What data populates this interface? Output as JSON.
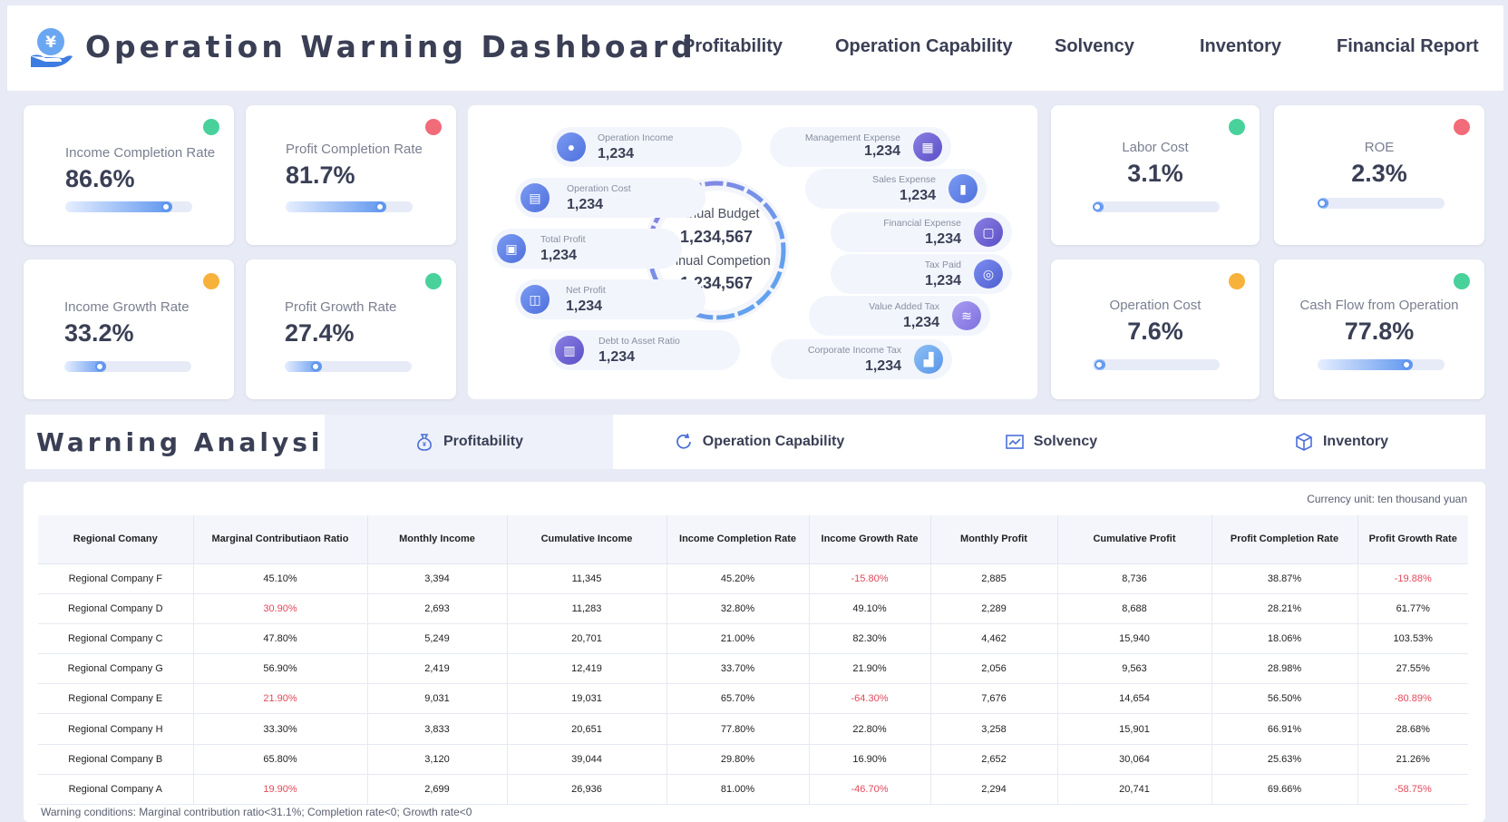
{
  "header": {
    "title": "Operation Warning Dashboard",
    "nav": [
      "Profitability",
      "Operation Capability",
      "Solvency",
      "Inventory",
      "Financial Report"
    ]
  },
  "colors": {
    "green": "#49d19b",
    "red": "#f26b78",
    "orange": "#f7b23b",
    "accent": "#5e95ee"
  },
  "kpis_left": [
    {
      "label": "Income Completion Rate",
      "value": "86.6%",
      "progress": 0.84,
      "status": "green"
    },
    {
      "label": "Profit Completion Rate",
      "value": "81.7%",
      "progress": 0.79,
      "status": "red"
    },
    {
      "label": "Income Growth Rate",
      "value": "33.2%",
      "progress": 0.33,
      "status": "orange"
    },
    {
      "label": "Profit Growth Rate",
      "value": "27.4%",
      "progress": 0.29,
      "status": "green"
    }
  ],
  "kpis_right": [
    {
      "label": "Labor Cost",
      "value": "3.1%",
      "progress": 0.05,
      "status": "green"
    },
    {
      "label": "ROE",
      "value": "2.3%",
      "progress": 0.05,
      "status": "red"
    },
    {
      "label": "Operation Cost",
      "value": "7.6%",
      "progress": 0.1,
      "status": "orange"
    },
    {
      "label": "Cash Flow from Operation",
      "value": "77.8%",
      "progress": 0.75,
      "status": "green"
    }
  ],
  "center": {
    "budget_label": "Annual Budget",
    "budget_value": "1,234,567",
    "completion_label": "Annual Competion",
    "completion_value": "1,234,567",
    "left_items": [
      {
        "label": "Operation Income",
        "value": "1,234",
        "icon": "coin-icon"
      },
      {
        "label": "Operation Cost",
        "value": "1,234",
        "icon": "document-icon"
      },
      {
        "label": "Total Profit",
        "value": "1,234",
        "icon": "wallet-icon"
      },
      {
        "label": "Net Profit",
        "value": "1,234",
        "icon": "chart-icon"
      },
      {
        "label": "Debt to Asset Ratio",
        "value": "1,234",
        "icon": "receipt-icon"
      }
    ],
    "right_items": [
      {
        "label": "Management Expense",
        "value": "1,234",
        "icon": "calendar-icon"
      },
      {
        "label": "Sales Expense",
        "value": "1,234",
        "icon": "bar-chart-icon"
      },
      {
        "label": "Financial Expense",
        "value": "1,234",
        "icon": "safe-icon"
      },
      {
        "label": "Tax Paid",
        "value": "1,234",
        "icon": "tax-icon"
      },
      {
        "label": "Value Added Tax",
        "value": "1,234",
        "icon": "coins-icon"
      },
      {
        "label": "Corporate Income Tax",
        "value": "1,234",
        "icon": "building-icon"
      }
    ]
  },
  "warning": {
    "title": "Warning Analysis",
    "tabs": [
      "Profitability",
      "Operation Capability",
      "Solvency",
      "Inventory"
    ]
  },
  "table": {
    "unit": "Currency unit: ten thousand yuan",
    "columns": [
      "Regional Comany",
      "Marginal Contributiaon Ratio",
      "Monthly Income",
      "Cumulative Income",
      "Income Completion Rate",
      "Income Growth Rate",
      "Monthly Profit",
      "Cumulative Profit",
      "Profit Completion Rate",
      "Profit Growth Rate"
    ],
    "rows": [
      [
        "Regional Company F",
        "45.10%",
        "3,394",
        "11,345",
        "45.20%",
        "-15.80%",
        "2,885",
        "8,736",
        "38.87%",
        "-19.88%"
      ],
      [
        "Regional Company D",
        "30.90%",
        "2,693",
        "11,283",
        "32.80%",
        "49.10%",
        "2,289",
        "8,688",
        "28.21%",
        "61.77%"
      ],
      [
        "Regional Company C",
        "47.80%",
        "5,249",
        "20,701",
        "21.00%",
        "82.30%",
        "4,462",
        "15,940",
        "18.06%",
        "103.53%"
      ],
      [
        "Regional Company G",
        "56.90%",
        "2,419",
        "12,419",
        "33.70%",
        "21.90%",
        "2,056",
        "9,563",
        "28.98%",
        "27.55%"
      ],
      [
        "Regional Company E",
        "21.90%",
        "9,031",
        "19,031",
        "65.70%",
        "-64.30%",
        "7,676",
        "14,654",
        "56.50%",
        "-80.89%"
      ],
      [
        "Regional Company H",
        "33.30%",
        "3,833",
        "20,651",
        "77.80%",
        "22.80%",
        "3,258",
        "15,901",
        "66.91%",
        "28.68%"
      ],
      [
        "Regional Company B",
        "65.80%",
        "3,120",
        "39,044",
        "29.80%",
        "16.90%",
        "2,652",
        "30,064",
        "25.63%",
        "21.26%"
      ],
      [
        "Regional Company A",
        "19.90%",
        "2,699",
        "26,936",
        "81.00%",
        "-46.70%",
        "2,294",
        "20,741",
        "69.66%",
        "-58.75%"
      ]
    ],
    "footnote": "Warning conditions: Marginal contribution ratio<31.1%;  Completion rate<0;  Growth rate<0"
  }
}
